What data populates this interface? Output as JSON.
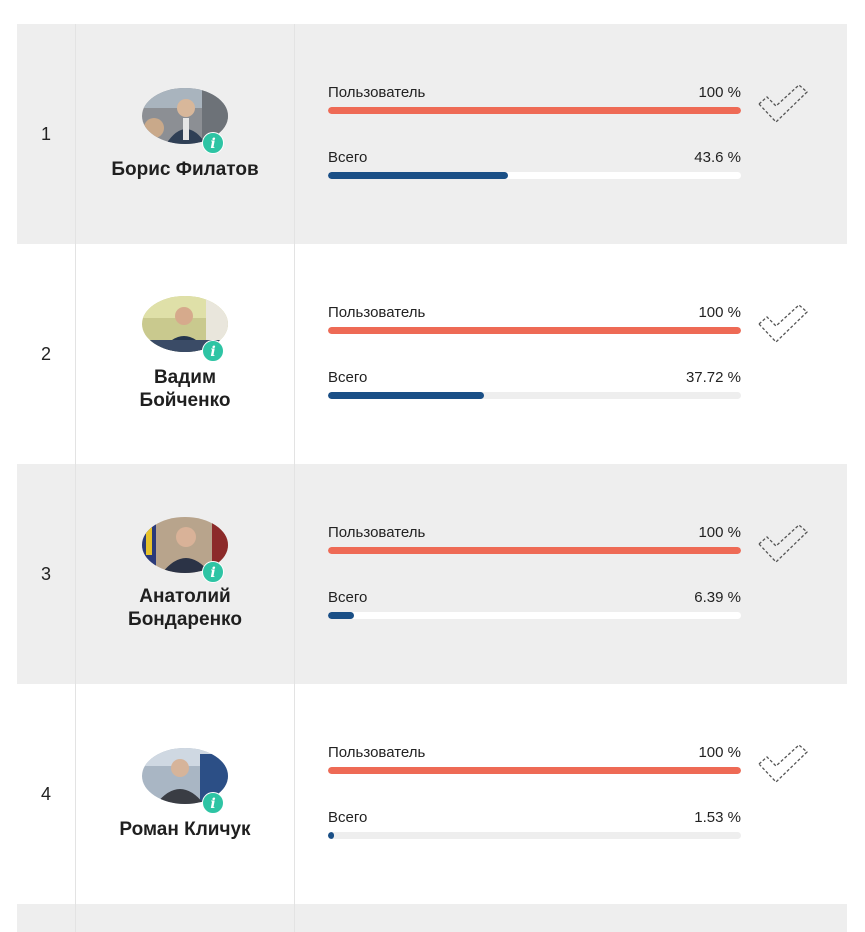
{
  "rows": [
    {
      "rank": "1",
      "name": "Борис Филатов",
      "user_label": "Пользователь",
      "user_value": "100 %",
      "user_fraction": 1.0,
      "total_label": "Всего",
      "total_value": "43.6 %",
      "total_fraction": 0.436
    },
    {
      "rank": "2",
      "name": "Вадим Бойченко",
      "user_label": "Пользователь",
      "user_value": "100 %",
      "user_fraction": 1.0,
      "total_label": "Всего",
      "total_value": "37.72 %",
      "total_fraction": 0.3772
    },
    {
      "rank": "3",
      "name": "Анатолий Бондаренко",
      "user_label": "Пользователь",
      "user_value": "100 %",
      "user_fraction": 1.0,
      "total_label": "Всего",
      "total_value": "6.39 %",
      "total_fraction": 0.0639
    },
    {
      "rank": "4",
      "name": "Роман Кличук",
      "user_label": "Пользователь",
      "user_value": "100 %",
      "user_fraction": 1.0,
      "total_label": "Всего",
      "total_value": "1.53 %",
      "total_fraction": 0.0153
    }
  ],
  "icons": {
    "info": "info-icon",
    "check": "checkmark-icon"
  },
  "colors": {
    "user_bar": "#ee6a55",
    "total_bar": "#1a4f86",
    "info_badge": "#2ec4a4",
    "row_shaded": "#eeeeee"
  }
}
